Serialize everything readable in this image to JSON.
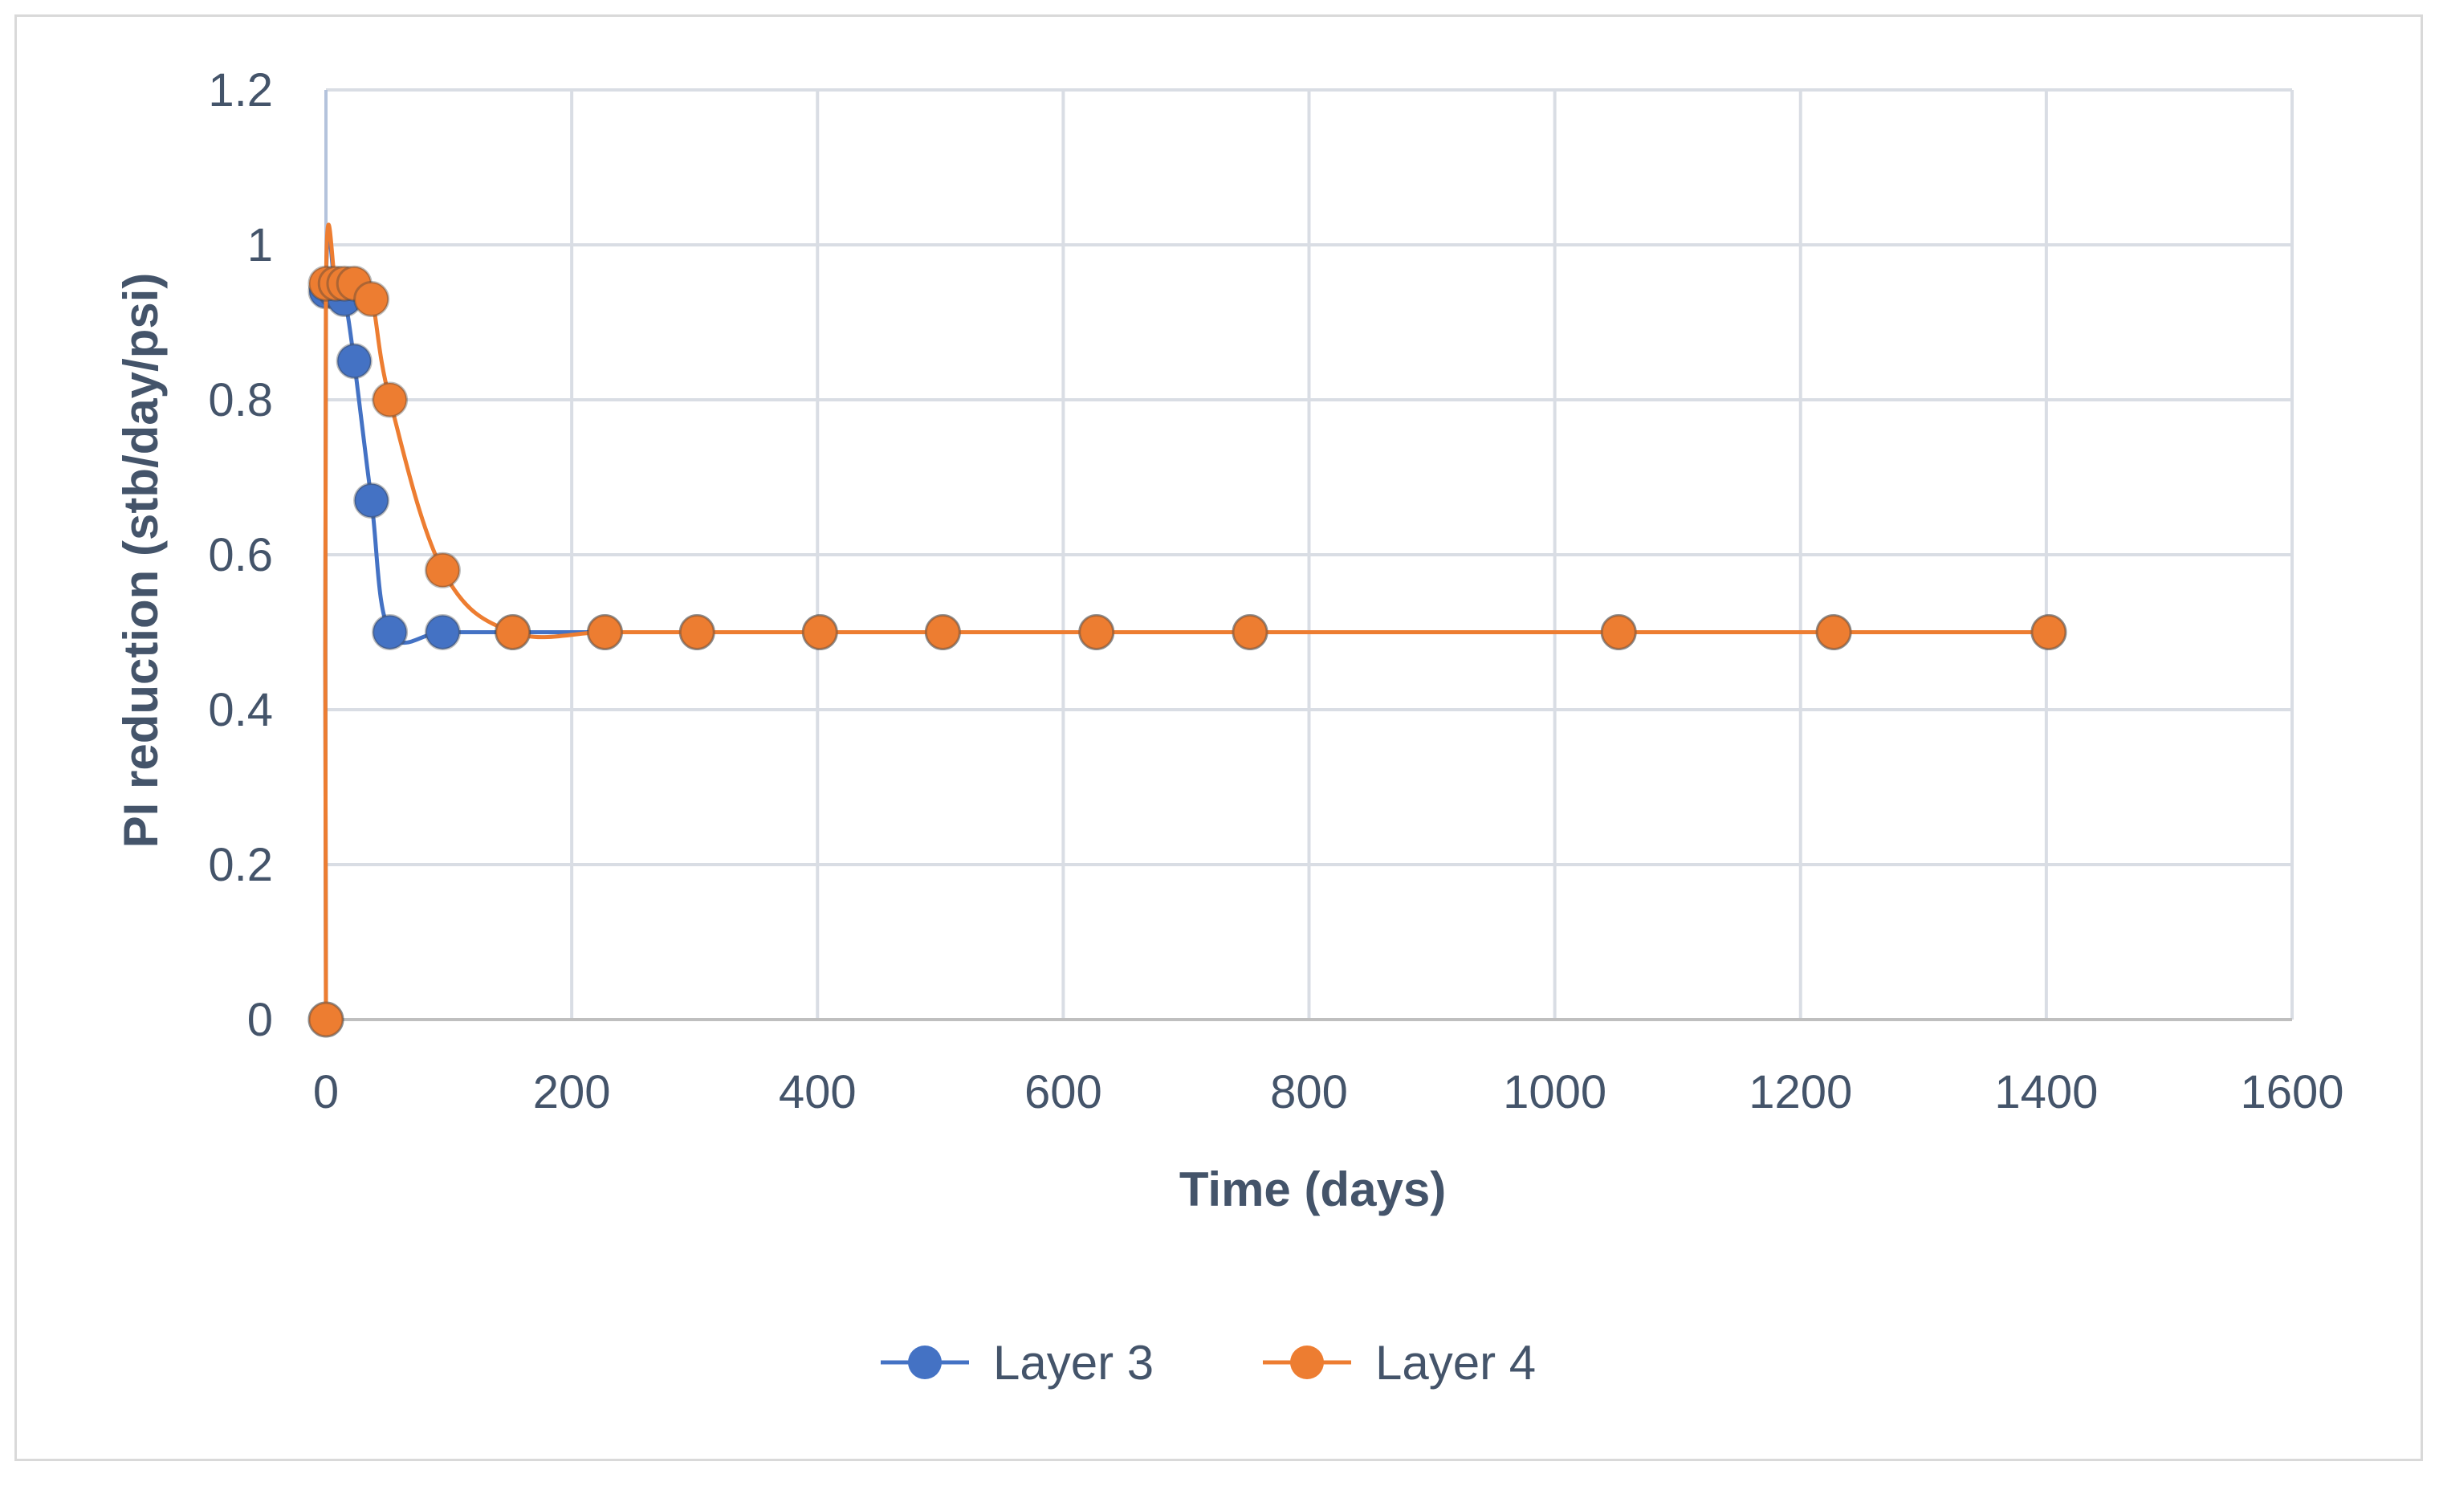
{
  "chart_data": {
    "type": "scatter",
    "title": "",
    "xlabel": "Time (days)",
    "ylabel": "PI reduction (stb/day/psi)",
    "xlim": [
      0,
      1600
    ],
    "ylim": [
      0,
      1.2
    ],
    "xticks": [
      0,
      200,
      400,
      600,
      800,
      1000,
      1200,
      1400,
      1600
    ],
    "yticks": [
      0,
      0.2,
      0.4,
      0.6,
      0.8,
      1,
      1.2
    ],
    "xtick_labels": [
      "0",
      "200",
      "400",
      "600",
      "800",
      "1000",
      "1200",
      "1400",
      "1600"
    ],
    "ytick_labels": [
      "0",
      "0.2",
      "0.4",
      "0.6",
      "0.8",
      "1",
      "1.2"
    ],
    "grid": true,
    "legend_position": "bottom",
    "series": [
      {
        "name": "Layer 3",
        "color": "#4472c4",
        "x": [
          0,
          0,
          8,
          15,
          23,
          37,
          52,
          95,
          152,
          227,
          302,
          402,
          502,
          627,
          752,
          1052,
          1227,
          1402
        ],
        "y": [
          0,
          0.94,
          0.94,
          0.93,
          0.85,
          0.67,
          0.5,
          0.5,
          0.5,
          0.5,
          0.5,
          0.5,
          0.5,
          0.5,
          0.5,
          0.5,
          0.5,
          0.5
        ]
      },
      {
        "name": "Layer 4",
        "color": "#ed7d31",
        "x": [
          0,
          0,
          8,
          15,
          23,
          37,
          52,
          95,
          152,
          227,
          302,
          402,
          502,
          627,
          752,
          1052,
          1227,
          1402
        ],
        "y": [
          0,
          0.95,
          0.95,
          0.95,
          0.95,
          0.93,
          0.8,
          0.58,
          0.5,
          0.5,
          0.5,
          0.5,
          0.5,
          0.5,
          0.5,
          0.5,
          0.5,
          0.5
        ]
      }
    ]
  }
}
